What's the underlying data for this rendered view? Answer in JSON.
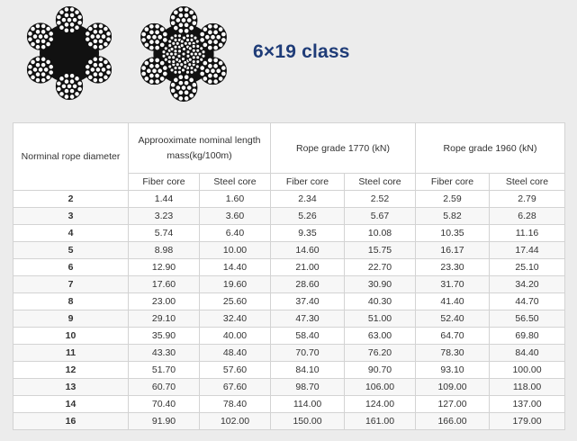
{
  "title": "6×19 class",
  "icons": [
    "wire-rope-fiber-core-icon",
    "wire-rope-steel-core-icon"
  ],
  "table": {
    "col_diameter": "Norminal rope diameter",
    "col_mass": "Approoximate nominal length mass(kg/100m)",
    "col_grade1770": "Rope grade 1770 (kN)",
    "col_grade1960": "Rope grade 1960 (kN)",
    "sub": {
      "mass_fiber": "Fiber core",
      "mass_steel": "Steel core",
      "g1770_fiber": "Fiber core",
      "g1770_steel": "Steel core",
      "g1960_fiber": "Fiber core",
      "g1960_steel": "Steel core"
    },
    "rows": [
      [
        "2",
        "1.44",
        "1.60",
        "2.34",
        "2.52",
        "2.59",
        "2.79"
      ],
      [
        "3",
        "3.23",
        "3.60",
        "5.26",
        "5.67",
        "5.82",
        "6.28"
      ],
      [
        "4",
        "5.74",
        "6.40",
        "9.35",
        "10.08",
        "10.35",
        "11.16"
      ],
      [
        "5",
        "8.98",
        "10.00",
        "14.60",
        "15.75",
        "16.17",
        "17.44"
      ],
      [
        "6",
        "12.90",
        "14.40",
        "21.00",
        "22.70",
        "23.30",
        "25.10"
      ],
      [
        "7",
        "17.60",
        "19.60",
        "28.60",
        "30.90",
        "31.70",
        "34.20"
      ],
      [
        "8",
        "23.00",
        "25.60",
        "37.40",
        "40.30",
        "41.40",
        "44.70"
      ],
      [
        "9",
        "29.10",
        "32.40",
        "47.30",
        "51.00",
        "52.40",
        "56.50"
      ],
      [
        "10",
        "35.90",
        "40.00",
        "58.40",
        "63.00",
        "64.70",
        "69.80"
      ],
      [
        "11",
        "43.30",
        "48.40",
        "70.70",
        "76.20",
        "78.30",
        "84.40"
      ],
      [
        "12",
        "51.70",
        "57.60",
        "84.10",
        "90.70",
        "93.10",
        "100.00"
      ],
      [
        "13",
        "60.70",
        "67.60",
        "98.70",
        "106.00",
        "109.00",
        "118.00"
      ],
      [
        "14",
        "70.40",
        "78.40",
        "114.00",
        "124.00",
        "127.00",
        "137.00"
      ],
      [
        "16",
        "91.90",
        "102.00",
        "150.00",
        "161.00",
        "166.00",
        "179.00"
      ]
    ]
  }
}
